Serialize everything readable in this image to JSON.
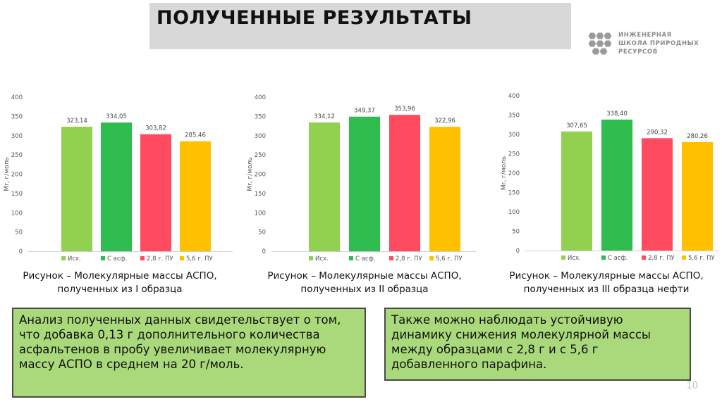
{
  "slide": {
    "title": "ПОЛУЧЕННЫЕ РЕЗУЛЬТАТЫ",
    "logo_lines": [
      "ИНЖЕНЕРНАЯ",
      "ШКОЛА ПРИРОДНЫХ",
      "РЕСУРСОВ"
    ],
    "page_number": "10",
    "colors": {
      "title_bar": "#d8d8d8",
      "box_fill": "#a9d97a",
      "box_border": "#4a4a4a"
    }
  },
  "captions": [
    "Рисунок  – Молекулярные массы АСПО, полученных из I образца",
    "Рисунок  – Молекулярные массы АСПО, полученных из II образца",
    "Рисунок  – Молекулярные массы АСПО, полученных из III образца нефти"
  ],
  "boxes": {
    "left": "Анализ полученных данных свидетельствует о том, что добавка 0,13 г дополнительного количества асфальтенов в пробу увеличивает молекулярную массу АСПО в среднем на 20 г/моль.",
    "right": "Также можно наблюдать устойчивую динамику снижения молекулярной массы между образцами с 2,8 г и с 5,6 г добавленного парафина."
  },
  "chart_data": [
    {
      "type": "bar",
      "categories": [
        "Исх.",
        "С асф.",
        "2,8 г. ПУ",
        "5,6 г. ПУ"
      ],
      "values": [
        323.14,
        334.05,
        303.82,
        285.46
      ],
      "value_labels": [
        "323,14",
        "334,05",
        "303,82",
        "285,46"
      ],
      "colors": [
        "#92d050",
        "#2ebd4e",
        "#ff4b5f",
        "#ffc000"
      ],
      "ylabel": "Mr, г/моль",
      "ylim": [
        0,
        400
      ],
      "yticks": [
        "0",
        "50",
        "100",
        "150",
        "200",
        "250",
        "300",
        "350",
        "400"
      ],
      "legend": "bottom",
      "grid": false
    },
    {
      "type": "bar",
      "categories": [
        "Исх.",
        "С асф.",
        "2,8 г. ПУ",
        "5,6 г. ПУ"
      ],
      "values": [
        334.12,
        349.37,
        353.96,
        322.96
      ],
      "value_labels": [
        "334,12",
        "349,37",
        "353,96",
        "322,96"
      ],
      "colors": [
        "#92d050",
        "#2ebd4e",
        "#ff4b5f",
        "#ffc000"
      ],
      "ylabel": "Mr, г/моль",
      "ylim": [
        0,
        400
      ],
      "yticks": [
        "0",
        "50",
        "100",
        "150",
        "200",
        "250",
        "300",
        "350",
        "400"
      ],
      "legend": "bottom",
      "grid": false
    },
    {
      "type": "bar",
      "categories": [
        "Исх.",
        "С асф.",
        "2,8 г. ПУ",
        "5,6 г. ПУ"
      ],
      "values": [
        307.65,
        338.4,
        290.32,
        280.26
      ],
      "value_labels": [
        "307,65",
        "338,40",
        "290,32",
        "280,26"
      ],
      "colors": [
        "#92d050",
        "#2ebd4e",
        "#ff4b5f",
        "#ffc000"
      ],
      "ylabel": "Mr, г/моль",
      "ylim": [
        0,
        400
      ],
      "yticks": [
        "0",
        "50",
        "100",
        "150",
        "200",
        "250",
        "300",
        "350",
        "400"
      ],
      "legend": "bottom",
      "grid": false
    }
  ]
}
